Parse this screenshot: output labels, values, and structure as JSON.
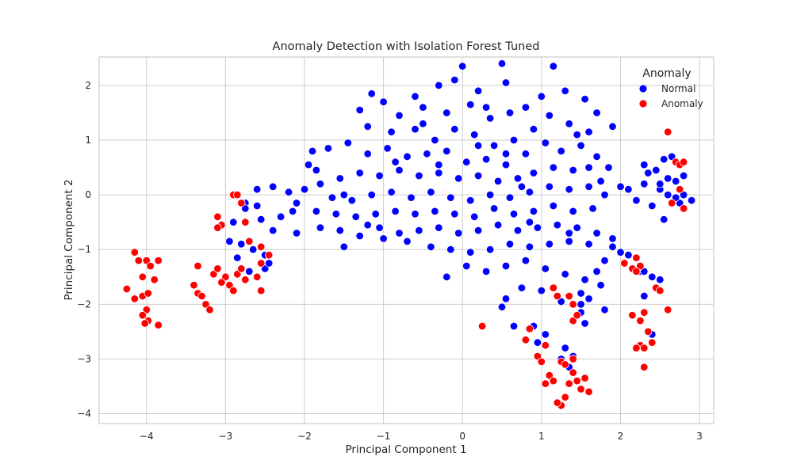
{
  "chart_data": {
    "type": "scatter",
    "title": "Anomaly Detection with Isolation Forest Tuned",
    "xlabel": "Principal Component 1",
    "ylabel": "Principal Component 2",
    "xlim": [
      -4.6,
      3.18
    ],
    "ylim": [
      -4.18,
      2.52
    ],
    "xticks": [
      -4,
      -3,
      -2,
      -1,
      0,
      1,
      2,
      3
    ],
    "yticks": [
      -4,
      -3,
      -2,
      -1,
      0,
      1,
      2
    ],
    "grid": true,
    "legend": {
      "title": "Anomaly",
      "position": "top-right"
    },
    "series": [
      {
        "name": "Normal",
        "color": "#0000ff",
        "points": [
          [
            0.0,
            2.35
          ],
          [
            -0.1,
            2.1
          ],
          [
            0.5,
            2.4
          ],
          [
            1.15,
            2.35
          ],
          [
            0.55,
            2.05
          ],
          [
            -0.3,
            2.0
          ],
          [
            0.2,
            1.9
          ],
          [
            -0.6,
            1.8
          ],
          [
            -1.15,
            1.85
          ],
          [
            -1.3,
            1.55
          ],
          [
            -1.0,
            1.7
          ],
          [
            -0.8,
            1.45
          ],
          [
            -0.5,
            1.6
          ],
          [
            -0.2,
            1.5
          ],
          [
            0.1,
            1.65
          ],
          [
            0.35,
            1.4
          ],
          [
            0.6,
            1.5
          ],
          [
            0.8,
            1.6
          ],
          [
            1.0,
            1.8
          ],
          [
            1.3,
            1.9
          ],
          [
            1.55,
            1.75
          ],
          [
            1.7,
            1.5
          ],
          [
            1.9,
            1.25
          ],
          [
            1.6,
            1.15
          ],
          [
            1.35,
            1.3
          ],
          [
            1.1,
            1.45
          ],
          [
            0.9,
            1.2
          ],
          [
            0.65,
            1.0
          ],
          [
            0.4,
            0.9
          ],
          [
            0.15,
            1.1
          ],
          [
            -0.1,
            1.2
          ],
          [
            -0.35,
            1.0
          ],
          [
            -0.6,
            1.2
          ],
          [
            -0.9,
            1.15
          ],
          [
            -1.2,
            1.25
          ],
          [
            -1.45,
            0.95
          ],
          [
            -1.7,
            0.85
          ],
          [
            -1.9,
            0.8
          ],
          [
            -1.2,
            0.75
          ],
          [
            -0.95,
            0.85
          ],
          [
            -0.7,
            0.7
          ],
          [
            -0.45,
            0.75
          ],
          [
            -0.2,
            0.8
          ],
          [
            0.05,
            0.6
          ],
          [
            0.3,
            0.65
          ],
          [
            0.55,
            0.55
          ],
          [
            0.8,
            0.75
          ],
          [
            1.05,
            0.95
          ],
          [
            1.25,
            0.8
          ],
          [
            1.5,
            0.9
          ],
          [
            1.7,
            0.7
          ],
          [
            1.85,
            0.5
          ],
          [
            1.6,
            0.5
          ],
          [
            1.4,
            0.45
          ],
          [
            1.15,
            0.5
          ],
          [
            0.9,
            0.4
          ],
          [
            0.7,
            0.3
          ],
          [
            0.45,
            0.25
          ],
          [
            0.2,
            0.35
          ],
          [
            -0.05,
            0.3
          ],
          [
            -0.3,
            0.4
          ],
          [
            -0.55,
            0.35
          ],
          [
            -0.8,
            0.45
          ],
          [
            -1.05,
            0.35
          ],
          [
            -1.3,
            0.4
          ],
          [
            -1.55,
            0.3
          ],
          [
            -1.8,
            0.2
          ],
          [
            -2.0,
            0.1
          ],
          [
            -2.2,
            0.05
          ],
          [
            -1.85,
            0.45
          ],
          [
            -1.95,
            0.55
          ],
          [
            -1.65,
            -0.05
          ],
          [
            -1.4,
            -0.1
          ],
          [
            -1.15,
            0.0
          ],
          [
            -0.9,
            0.05
          ],
          [
            -0.65,
            -0.05
          ],
          [
            -0.4,
            0.05
          ],
          [
            -0.15,
            -0.05
          ],
          [
            0.1,
            -0.1
          ],
          [
            0.35,
            0.0
          ],
          [
            0.6,
            -0.05
          ],
          [
            0.85,
            0.05
          ],
          [
            1.1,
            0.15
          ],
          [
            1.35,
            0.1
          ],
          [
            1.6,
            0.15
          ],
          [
            1.8,
            0.0
          ],
          [
            1.65,
            -0.25
          ],
          [
            1.4,
            -0.3
          ],
          [
            1.15,
            -0.2
          ],
          [
            0.9,
            -0.3
          ],
          [
            0.65,
            -0.35
          ],
          [
            0.4,
            -0.25
          ],
          [
            0.15,
            -0.4
          ],
          [
            -0.1,
            -0.35
          ],
          [
            -0.35,
            -0.3
          ],
          [
            -0.6,
            -0.35
          ],
          [
            -0.85,
            -0.3
          ],
          [
            -1.1,
            -0.35
          ],
          [
            -1.35,
            -0.4
          ],
          [
            -1.6,
            -0.35
          ],
          [
            -1.85,
            -0.3
          ],
          [
            -2.1,
            -0.15
          ],
          [
            -2.3,
            -0.4
          ],
          [
            -2.1,
            -0.7
          ],
          [
            -1.8,
            -0.6
          ],
          [
            -1.55,
            -0.65
          ],
          [
            -1.3,
            -0.75
          ],
          [
            -1.05,
            -0.6
          ],
          [
            -0.8,
            -0.7
          ],
          [
            -0.55,
            -0.65
          ],
          [
            -0.3,
            -0.6
          ],
          [
            -0.05,
            -0.7
          ],
          [
            0.2,
            -0.65
          ],
          [
            0.45,
            -0.55
          ],
          [
            0.7,
            -0.65
          ],
          [
            0.95,
            -0.6
          ],
          [
            1.2,
            -0.55
          ],
          [
            1.45,
            -0.6
          ],
          [
            1.7,
            -0.7
          ],
          [
            1.9,
            -0.8
          ],
          [
            1.6,
            -0.9
          ],
          [
            1.35,
            -0.85
          ],
          [
            1.1,
            -0.9
          ],
          [
            0.85,
            -0.95
          ],
          [
            0.6,
            -0.9
          ],
          [
            0.35,
            -1.0
          ],
          [
            0.1,
            -1.05
          ],
          [
            -0.15,
            -1.0
          ],
          [
            -0.4,
            -0.95
          ],
          [
            -0.7,
            -0.85
          ],
          [
            -1.0,
            -0.8
          ],
          [
            -1.5,
            -0.95
          ],
          [
            -2.4,
            -0.65
          ],
          [
            -2.55,
            -0.45
          ],
          [
            -2.75,
            -0.15
          ],
          [
            -2.6,
            0.1
          ],
          [
            -2.4,
            0.15
          ],
          [
            -2.6,
            -0.2
          ],
          [
            -2.95,
            -0.85
          ],
          [
            -2.8,
            -0.9
          ],
          [
            -2.65,
            -1.0
          ],
          [
            -2.5,
            -1.1
          ],
          [
            -2.85,
            -1.15
          ],
          [
            -2.7,
            -1.4
          ],
          [
            -2.5,
            -1.35
          ],
          [
            -2.45,
            -1.25
          ],
          [
            -2.9,
            -0.5
          ],
          [
            -2.75,
            -0.25
          ],
          [
            -0.2,
            -1.5
          ],
          [
            0.05,
            -1.3
          ],
          [
            0.3,
            -1.4
          ],
          [
            0.55,
            -1.3
          ],
          [
            0.8,
            -1.2
          ],
          [
            1.05,
            -1.35
          ],
          [
            1.3,
            -1.45
          ],
          [
            1.55,
            -1.55
          ],
          [
            1.75,
            -1.65
          ],
          [
            1.5,
            -1.8
          ],
          [
            1.25,
            -1.95
          ],
          [
            1.0,
            -1.75
          ],
          [
            0.75,
            -1.7
          ],
          [
            0.55,
            -1.9
          ],
          [
            0.5,
            -2.05
          ],
          [
            0.65,
            -2.4
          ],
          [
            0.9,
            -2.4
          ],
          [
            1.05,
            -2.55
          ],
          [
            0.95,
            -2.7
          ],
          [
            1.5,
            -2.15
          ],
          [
            1.55,
            -2.35
          ],
          [
            1.6,
            -1.9
          ],
          [
            1.3,
            -2.8
          ],
          [
            1.25,
            -3.0
          ],
          [
            1.35,
            -3.15
          ],
          [
            1.4,
            -2.95
          ],
          [
            1.5,
            -2.0
          ],
          [
            1.7,
            -1.4
          ],
          [
            1.8,
            -2.1
          ],
          [
            1.8,
            -1.2
          ],
          [
            1.9,
            -0.95
          ],
          [
            2.0,
            -1.05
          ],
          [
            2.1,
            -1.1
          ],
          [
            2.2,
            -1.15
          ],
          [
            2.25,
            -1.4
          ],
          [
            2.4,
            -1.5
          ],
          [
            2.3,
            -1.4
          ],
          [
            2.5,
            -1.55
          ],
          [
            2.3,
            -1.85
          ],
          [
            2.4,
            -2.55
          ],
          [
            2.0,
            0.15
          ],
          [
            2.3,
            0.2
          ],
          [
            2.5,
            0.1
          ],
          [
            2.6,
            0.0
          ],
          [
            2.7,
            0.25
          ],
          [
            2.8,
            0.0
          ],
          [
            2.45,
            0.45
          ],
          [
            2.55,
            0.65
          ],
          [
            2.65,
            0.7
          ],
          [
            2.3,
            0.55
          ],
          [
            2.4,
            -0.2
          ],
          [
            2.2,
            -0.1
          ],
          [
            2.75,
            -0.15
          ],
          [
            2.55,
            -0.45
          ],
          [
            2.1,
            0.1
          ],
          [
            2.8,
            0.35
          ],
          [
            2.9,
            -0.1
          ],
          [
            2.35,
            0.4
          ],
          [
            2.6,
            0.3
          ],
          [
            2.7,
            -0.05
          ],
          [
            2.5,
            0.2
          ],
          [
            -0.3,
            0.55
          ],
          [
            0.2,
            0.9
          ],
          [
            0.55,
            0.75
          ],
          [
            -0.85,
            0.6
          ],
          [
            1.75,
            0.25
          ],
          [
            1.35,
            -0.7
          ],
          [
            0.85,
            -0.5
          ],
          [
            -0.5,
            1.3
          ],
          [
            0.3,
            1.6
          ],
          [
            0.75,
            0.15
          ],
          [
            1.45,
            1.1
          ],
          [
            -1.5,
            0.0
          ],
          [
            -2.15,
            -0.3
          ],
          [
            -1.2,
            -0.55
          ]
        ]
      },
      {
        "name": "Anomaly",
        "color": "#ff0000",
        "points": [
          [
            -4.25,
            -1.72
          ],
          [
            -4.15,
            -1.05
          ],
          [
            -4.1,
            -1.2
          ],
          [
            -4.0,
            -1.2
          ],
          [
            -4.05,
            -1.5
          ],
          [
            -3.95,
            -1.3
          ],
          [
            -3.85,
            -1.2
          ],
          [
            -3.9,
            -1.55
          ],
          [
            -4.15,
            -1.9
          ],
          [
            -4.05,
            -1.85
          ],
          [
            -3.98,
            -1.8
          ],
          [
            -4.0,
            -2.1
          ],
          [
            -4.05,
            -2.2
          ],
          [
            -3.98,
            -2.3
          ],
          [
            -3.85,
            -2.38
          ],
          [
            -4.02,
            -2.35
          ],
          [
            -3.4,
            -1.65
          ],
          [
            -3.35,
            -1.3
          ],
          [
            -3.35,
            -1.8
          ],
          [
            -3.3,
            -1.85
          ],
          [
            -3.25,
            -2.0
          ],
          [
            -3.2,
            -2.1
          ],
          [
            -3.15,
            -1.45
          ],
          [
            -3.1,
            -1.35
          ],
          [
            -3.0,
            -1.5
          ],
          [
            -2.95,
            -1.65
          ],
          [
            -3.05,
            -1.6
          ],
          [
            -2.9,
            0.0
          ],
          [
            -2.85,
            0.0
          ],
          [
            -2.8,
            -0.15
          ],
          [
            -3.1,
            -0.4
          ],
          [
            -3.05,
            -0.55
          ],
          [
            -3.1,
            -0.6
          ],
          [
            -2.75,
            -0.5
          ],
          [
            -2.7,
            -0.85
          ],
          [
            -2.55,
            -0.95
          ],
          [
            -2.45,
            -1.1
          ],
          [
            -2.55,
            -1.25
          ],
          [
            -2.6,
            -1.5
          ],
          [
            -2.55,
            -1.75
          ],
          [
            -2.75,
            -1.55
          ],
          [
            -2.85,
            -1.45
          ],
          [
            -2.9,
            -1.75
          ],
          [
            -2.8,
            -1.35
          ],
          [
            0.25,
            -2.4
          ],
          [
            0.85,
            -2.45
          ],
          [
            0.8,
            -2.65
          ],
          [
            0.95,
            -2.95
          ],
          [
            1.0,
            -3.05
          ],
          [
            1.05,
            -2.75
          ],
          [
            1.1,
            -3.3
          ],
          [
            1.05,
            -3.45
          ],
          [
            1.15,
            -3.4
          ],
          [
            1.25,
            -3.05
          ],
          [
            1.3,
            -3.1
          ],
          [
            1.4,
            -3.0
          ],
          [
            1.4,
            -3.25
          ],
          [
            1.45,
            -3.4
          ],
          [
            1.5,
            -3.55
          ],
          [
            1.55,
            -3.35
          ],
          [
            1.6,
            -3.6
          ],
          [
            1.35,
            -3.45
          ],
          [
            1.25,
            -3.85
          ],
          [
            1.2,
            -3.8
          ],
          [
            1.3,
            -3.7
          ],
          [
            1.4,
            -2.3
          ],
          [
            1.45,
            -2.2
          ],
          [
            1.4,
            -2.0
          ],
          [
            1.35,
            -1.85
          ],
          [
            1.15,
            -1.7
          ],
          [
            1.2,
            -1.85
          ],
          [
            2.05,
            -1.25
          ],
          [
            2.15,
            -1.35
          ],
          [
            2.2,
            -1.15
          ],
          [
            2.25,
            -1.3
          ],
          [
            2.2,
            -1.4
          ],
          [
            2.15,
            -2.2
          ],
          [
            2.25,
            -2.3
          ],
          [
            2.3,
            -2.15
          ],
          [
            2.35,
            -2.5
          ],
          [
            2.25,
            -2.75
          ],
          [
            2.2,
            -2.8
          ],
          [
            2.3,
            -2.8
          ],
          [
            2.4,
            -2.7
          ],
          [
            2.3,
            -3.15
          ],
          [
            2.45,
            -1.7
          ],
          [
            2.5,
            -1.75
          ],
          [
            2.6,
            -2.1
          ],
          [
            2.6,
            1.15
          ],
          [
            2.7,
            0.6
          ],
          [
            2.75,
            0.55
          ],
          [
            2.8,
            0.6
          ],
          [
            2.75,
            0.1
          ],
          [
            2.8,
            -0.25
          ],
          [
            2.65,
            -0.15
          ]
        ]
      }
    ]
  }
}
